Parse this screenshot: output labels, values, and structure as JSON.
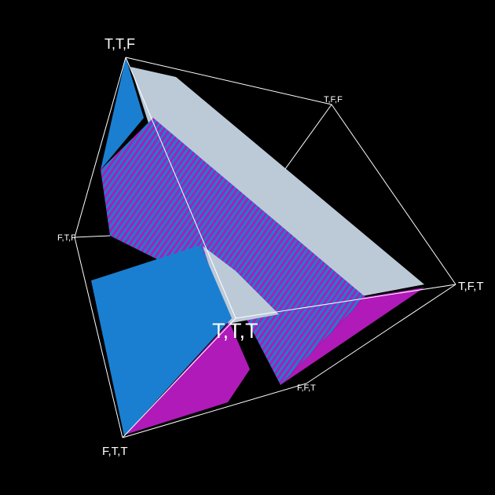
{
  "colors": {
    "background": "#000000",
    "edges": "#ffffff",
    "blue": "#1a7fd0",
    "magenta": "#b01ab8",
    "lightblue": "#bccad8"
  },
  "vertices": {
    "ttf": "T,T,F",
    "tff": "T,F,F",
    "ftf": "F,T,F",
    "tft": "T,F,T",
    "ttt": "T,T,T",
    "fft": "F,F,T",
    "ftt": "F,T,T"
  }
}
